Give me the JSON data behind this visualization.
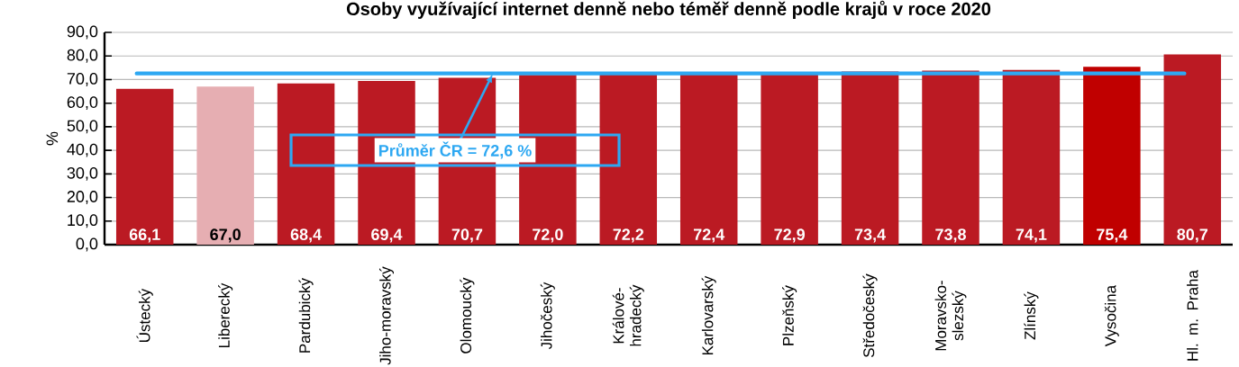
{
  "chart_data": {
    "type": "bar",
    "title": "Osoby využívající internet denně nebo téměř denně podle krajů v roce 2020",
    "ylabel": "%",
    "categories": [
      "Ústecký",
      "Liberecký",
      "Pardubický",
      "Jiho-moravský",
      "Olomoucký",
      "Jihočeský",
      "Králové-hradecký",
      "Karlovarský",
      "Plzeňský",
      "Středočeský",
      "Moravsko-slezský",
      "Zlínský",
      "Vysočina",
      "Hl. m. Praha"
    ],
    "values": [
      66.1,
      67.0,
      68.4,
      69.4,
      70.7,
      72.0,
      72.2,
      72.4,
      72.9,
      73.4,
      73.8,
      74.1,
      75.4,
      80.7
    ],
    "value_labels": [
      "66,1",
      "67,0",
      "68,4",
      "69,4",
      "70,7",
      "72,0",
      "72,2",
      "72,4",
      "72,9",
      "73,4",
      "73,8",
      "74,1",
      "75,4",
      "80,7"
    ],
    "colors": [
      "#bb1a23",
      "#e6aeb2",
      "#bb1a23",
      "#bb1a23",
      "#bb1a23",
      "#bb1a23",
      "#bb1a23",
      "#bb1a23",
      "#bb1a23",
      "#bb1a23",
      "#bb1a23",
      "#bb1a23",
      "#c00000",
      "#bb1a23"
    ],
    "ylim": [
      0,
      90
    ],
    "yticks": [
      {
        "value": 0,
        "label": "0,0"
      },
      {
        "value": 10,
        "label": "10,0"
      },
      {
        "value": 20,
        "label": "20,0"
      },
      {
        "value": 30,
        "label": "30,0"
      },
      {
        "value": 40,
        "label": "40,0"
      },
      {
        "value": 50,
        "label": "50,0"
      },
      {
        "value": 60,
        "label": "60,0"
      },
      {
        "value": 70,
        "label": "70,0"
      },
      {
        "value": 80,
        "label": "80,0"
      },
      {
        "value": 90,
        "label": "90,0"
      }
    ],
    "grid": "y",
    "ref_lines": [
      {
        "axis": "y",
        "value": 72.6,
        "label": "Průměr ČR =  72,6 %",
        "color": "#2ea8f2"
      }
    ]
  }
}
